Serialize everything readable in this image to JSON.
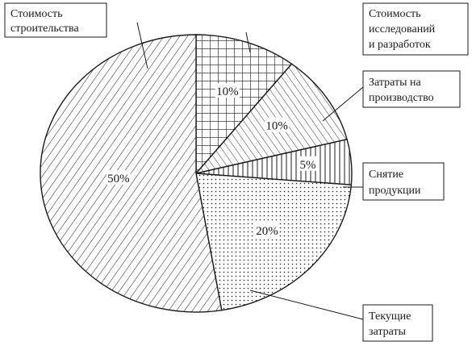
{
  "chart_data": {
    "type": "pie",
    "title": "",
    "slices": [
      {
        "label": "Стоимость исследований и разработок",
        "value": 10,
        "value_label": "10%",
        "pattern": "grid"
      },
      {
        "label": "Затраты на производство",
        "value": 10,
        "value_label": "10%",
        "pattern": "diagonal-left"
      },
      {
        "label": "Снятие продукции",
        "value": 5,
        "value_label": "5%",
        "pattern": "vertical"
      },
      {
        "label": "Текущие затраты",
        "value": 20,
        "value_label": "20%",
        "pattern": "dots"
      },
      {
        "label": "Стоимость строительства",
        "value": 50,
        "value_label": "50%",
        "pattern": "diagonal-right"
      }
    ],
    "legend": "callout boxes",
    "colors": {
      "stroke": "#1a1a1a",
      "background": "#ffffff"
    }
  },
  "callouts": {
    "construction": [
      "Стоимость",
      "строительства"
    ],
    "research": [
      "Стоимость",
      "исследований",
      "и разработок"
    ],
    "production": [
      "Затраты на",
      "производство"
    ],
    "withdrawal": [
      "Снятие",
      "продукции"
    ],
    "current": [
      "Текущие",
      "затраты"
    ]
  }
}
